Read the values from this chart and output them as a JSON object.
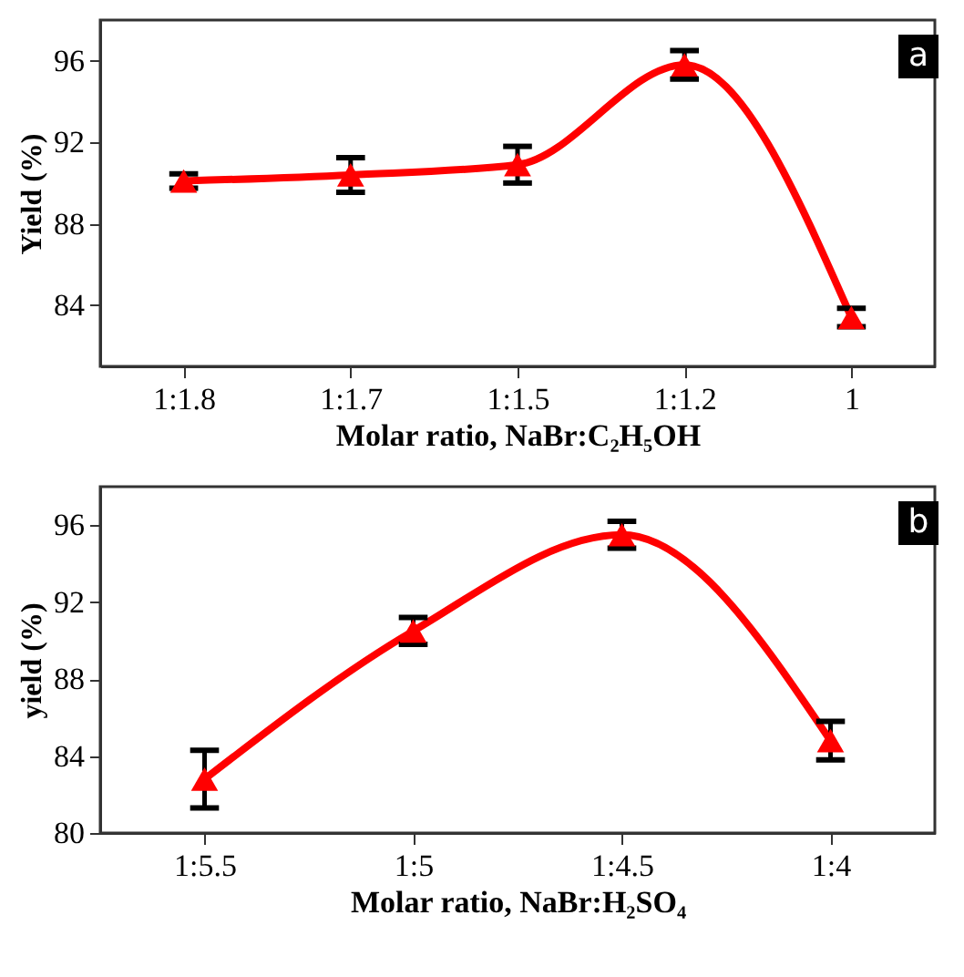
{
  "chart_data": [
    {
      "type": "line",
      "xlabel": "Molar ratio, NaBr:C₂H₅OH",
      "ylabel": "Yield (%)",
      "annotations": [
        "a"
      ],
      "categories": [
        "1:1.8",
        "1:1.7",
        "1:1.5",
        "1:1.2",
        "1"
      ],
      "series": [
        {
          "color": "#ff0000",
          "values": [
            90.1,
            90.4,
            90.9,
            95.8,
            83.4
          ],
          "errors": [
            0.35,
            0.85,
            0.9,
            0.7,
            0.45
          ]
        }
      ],
      "ylim": [
        81,
        98
      ],
      "yticks": [
        84,
        88,
        92,
        96
      ],
      "grid": false,
      "marker": "triangle",
      "line_style": "solid"
    },
    {
      "type": "line",
      "xlabel": "Molar ratio, NaBr:H₂SO₄",
      "ylabel": "yield (%)",
      "annotations": [
        "b"
      ],
      "categories": [
        "1:5.5",
        "1:5",
        "1:4.5",
        "1:4"
      ],
      "series": [
        {
          "color": "#ff0000",
          "values": [
            82.8,
            90.5,
            95.5,
            84.8
          ],
          "errors": [
            1.5,
            0.7,
            0.7,
            1.0
          ]
        }
      ],
      "ylim": [
        80,
        98
      ],
      "yticks": [
        80,
        84,
        88,
        92,
        96
      ],
      "grid": false,
      "marker": "triangle",
      "line_style": "solid"
    }
  ]
}
